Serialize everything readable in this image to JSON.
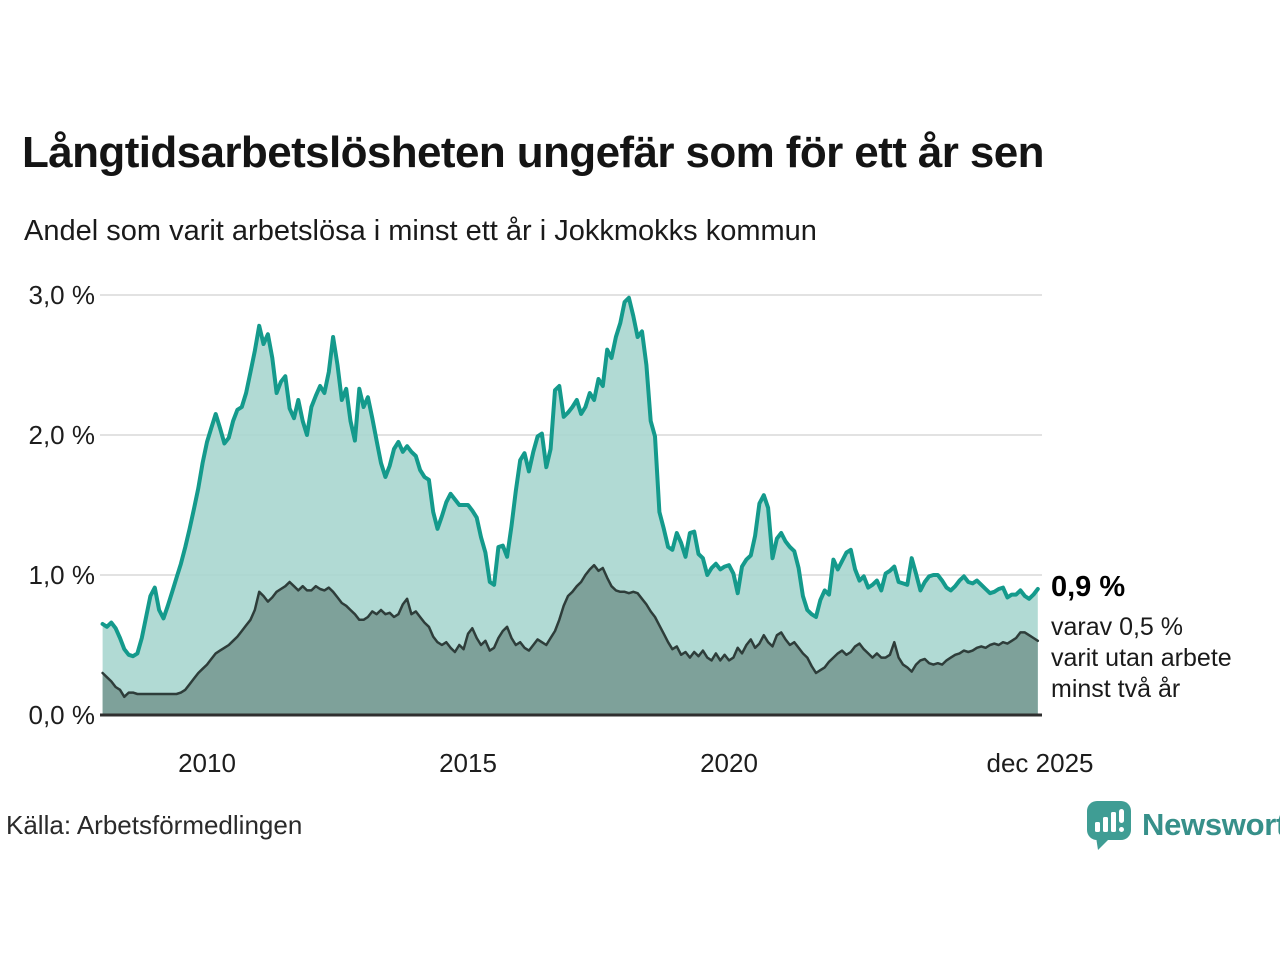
{
  "header": {
    "title": "Långtidsarbetslösheten ungefär som för ett år sen",
    "subtitle": "Andel som varit arbetslösa i minst ett år i Jokkmokks kommun"
  },
  "chart_data": {
    "type": "area",
    "title": "Långtidsarbetslösheten ungefär som för ett år sen",
    "subtitle": "Andel som varit arbetslösa i minst ett år i Jokkmokks kommun",
    "unit": "%",
    "x_range": {
      "start": "2008-01",
      "end": "2025-12",
      "interval": "month"
    },
    "ylim": [
      0.0,
      3.0
    ],
    "grid": "horizontal",
    "y_ticks": [
      {
        "label": "3,0 %",
        "value": 3.0
      },
      {
        "label": "2,0 %",
        "value": 2.0
      },
      {
        "label": "1,0 %",
        "value": 1.0
      },
      {
        "label": "0,0 %",
        "value": 0.0
      }
    ],
    "x_ticks": [
      {
        "label": "2010",
        "year": 2010
      },
      {
        "label": "2015",
        "year": 2015
      },
      {
        "label": "2020",
        "year": 2020
      },
      {
        "label": "dec 2025",
        "year": 2025.92
      }
    ],
    "annotation": {
      "value_label": "0,9 %",
      "detail_lines": [
        "varav 0,5 %",
        "varit utan arbete",
        "minst två år"
      ],
      "end_value_pct": 0.9,
      "end_value_two_years_pct": 0.5
    },
    "series": [
      {
        "name": "Andel som varit arbetslösa minst ett år",
        "color": "#149a8c",
        "fill": "#a9d6cf",
        "values": [
          0.65,
          0.63,
          0.66,
          0.62,
          0.55,
          0.47,
          0.43,
          0.42,
          0.44,
          0.55,
          0.7,
          0.85,
          0.91,
          0.75,
          0.69,
          0.78,
          0.88,
          0.98,
          1.08,
          1.2,
          1.33,
          1.47,
          1.62,
          1.8,
          1.95,
          2.05,
          2.15,
          2.05,
          1.94,
          1.98,
          2.1,
          2.18,
          2.2,
          2.3,
          2.45,
          2.6,
          2.78,
          2.65,
          2.72,
          2.55,
          2.3,
          2.38,
          2.42,
          2.19,
          2.12,
          2.25,
          2.1,
          2.0,
          2.2,
          2.28,
          2.35,
          2.3,
          2.45,
          2.7,
          2.5,
          2.25,
          2.33,
          2.1,
          1.96,
          2.33,
          2.2,
          2.27,
          2.12,
          1.96,
          1.8,
          1.7,
          1.78,
          1.9,
          1.95,
          1.88,
          1.92,
          1.88,
          1.85,
          1.75,
          1.7,
          1.68,
          1.45,
          1.33,
          1.42,
          1.52,
          1.58,
          1.54,
          1.5,
          1.5,
          1.5,
          1.46,
          1.41,
          1.27,
          1.16,
          0.95,
          0.93,
          1.2,
          1.21,
          1.13,
          1.35,
          1.6,
          1.82,
          1.87,
          1.74,
          1.88,
          1.99,
          2.01,
          1.77,
          1.9,
          2.32,
          2.35,
          2.13,
          2.16,
          2.2,
          2.25,
          2.15,
          2.2,
          2.3,
          2.25,
          2.4,
          2.35,
          2.61,
          2.55,
          2.7,
          2.8,
          2.95,
          2.98,
          2.85,
          2.7,
          2.74,
          2.5,
          2.1,
          1.99,
          1.45,
          1.33,
          1.2,
          1.18,
          1.3,
          1.23,
          1.13,
          1.3,
          1.31,
          1.15,
          1.12,
          1.0,
          1.05,
          1.08,
          1.04,
          1.06,
          1.07,
          1.01,
          0.87,
          1.06,
          1.11,
          1.14,
          1.28,
          1.51,
          1.57,
          1.48,
          1.12,
          1.26,
          1.3,
          1.24,
          1.2,
          1.17,
          1.05,
          0.85,
          0.75,
          0.72,
          0.7,
          0.82,
          0.89,
          0.86,
          1.11,
          1.04,
          1.1,
          1.16,
          1.18,
          1.04,
          0.96,
          0.99,
          0.91,
          0.93,
          0.96,
          0.89,
          1.01,
          1.03,
          1.06,
          0.95,
          0.94,
          0.93,
          1.12,
          1.01,
          0.89,
          0.95,
          0.99,
          1.0,
          1.0,
          0.96,
          0.91,
          0.89,
          0.92,
          0.96,
          0.99,
          0.95,
          0.94,
          0.96,
          0.93,
          0.9,
          0.87,
          0.88,
          0.9,
          0.91,
          0.84,
          0.86,
          0.86,
          0.89,
          0.85,
          0.83,
          0.86,
          0.9
        ]
      },
      {
        "name": "varav utan arbete minst två år",
        "color": "#2e3d3a",
        "fill": "#7ea19a",
        "values": [
          0.3,
          0.27,
          0.24,
          0.2,
          0.18,
          0.13,
          0.16,
          0.16,
          0.15,
          0.15,
          0.15,
          0.15,
          0.15,
          0.15,
          0.15,
          0.15,
          0.15,
          0.15,
          0.16,
          0.18,
          0.22,
          0.26,
          0.3,
          0.33,
          0.36,
          0.4,
          0.44,
          0.46,
          0.48,
          0.5,
          0.53,
          0.56,
          0.6,
          0.64,
          0.68,
          0.75,
          0.88,
          0.85,
          0.81,
          0.84,
          0.88,
          0.9,
          0.92,
          0.95,
          0.92,
          0.89,
          0.92,
          0.89,
          0.89,
          0.92,
          0.9,
          0.89,
          0.91,
          0.88,
          0.84,
          0.8,
          0.78,
          0.75,
          0.72,
          0.68,
          0.68,
          0.7,
          0.74,
          0.72,
          0.75,
          0.72,
          0.73,
          0.7,
          0.72,
          0.79,
          0.83,
          0.72,
          0.74,
          0.7,
          0.66,
          0.63,
          0.56,
          0.52,
          0.5,
          0.52,
          0.48,
          0.45,
          0.5,
          0.47,
          0.58,
          0.62,
          0.55,
          0.5,
          0.53,
          0.46,
          0.48,
          0.55,
          0.6,
          0.63,
          0.55,
          0.5,
          0.52,
          0.48,
          0.46,
          0.5,
          0.54,
          0.52,
          0.5,
          0.55,
          0.6,
          0.68,
          0.78,
          0.85,
          0.88,
          0.92,
          0.95,
          1.0,
          1.04,
          1.07,
          1.03,
          1.05,
          0.98,
          0.92,
          0.89,
          0.88,
          0.88,
          0.87,
          0.88,
          0.87,
          0.83,
          0.79,
          0.74,
          0.7,
          0.64,
          0.58,
          0.52,
          0.47,
          0.49,
          0.43,
          0.45,
          0.41,
          0.45,
          0.42,
          0.46,
          0.41,
          0.39,
          0.44,
          0.39,
          0.43,
          0.39,
          0.41,
          0.48,
          0.44,
          0.5,
          0.54,
          0.48,
          0.51,
          0.57,
          0.52,
          0.49,
          0.57,
          0.59,
          0.54,
          0.5,
          0.52,
          0.48,
          0.44,
          0.41,
          0.35,
          0.3,
          0.32,
          0.34,
          0.38,
          0.41,
          0.44,
          0.46,
          0.43,
          0.45,
          0.49,
          0.51,
          0.47,
          0.44,
          0.41,
          0.44,
          0.41,
          0.41,
          0.43,
          0.52,
          0.41,
          0.36,
          0.34,
          0.31,
          0.36,
          0.39,
          0.4,
          0.37,
          0.36,
          0.37,
          0.36,
          0.39,
          0.41,
          0.43,
          0.44,
          0.46,
          0.45,
          0.46,
          0.48,
          0.49,
          0.48,
          0.5,
          0.51,
          0.5,
          0.52,
          0.51,
          0.53,
          0.55,
          0.59,
          0.59,
          0.57,
          0.55,
          0.53
        ]
      }
    ],
    "colors": {
      "line_total": "#149a8c",
      "fill_total": "#a9d6cf",
      "line_two_years": "#2e3d3a",
      "fill_two_years": "#7ea19a",
      "gridline": "#e2e2e2",
      "axis": "#2f2f2f"
    }
  },
  "footer": {
    "source": "Källa: Arbetsförmedlingen",
    "logo_text": "Newsworthy",
    "logo_color": "#3f9d94"
  }
}
